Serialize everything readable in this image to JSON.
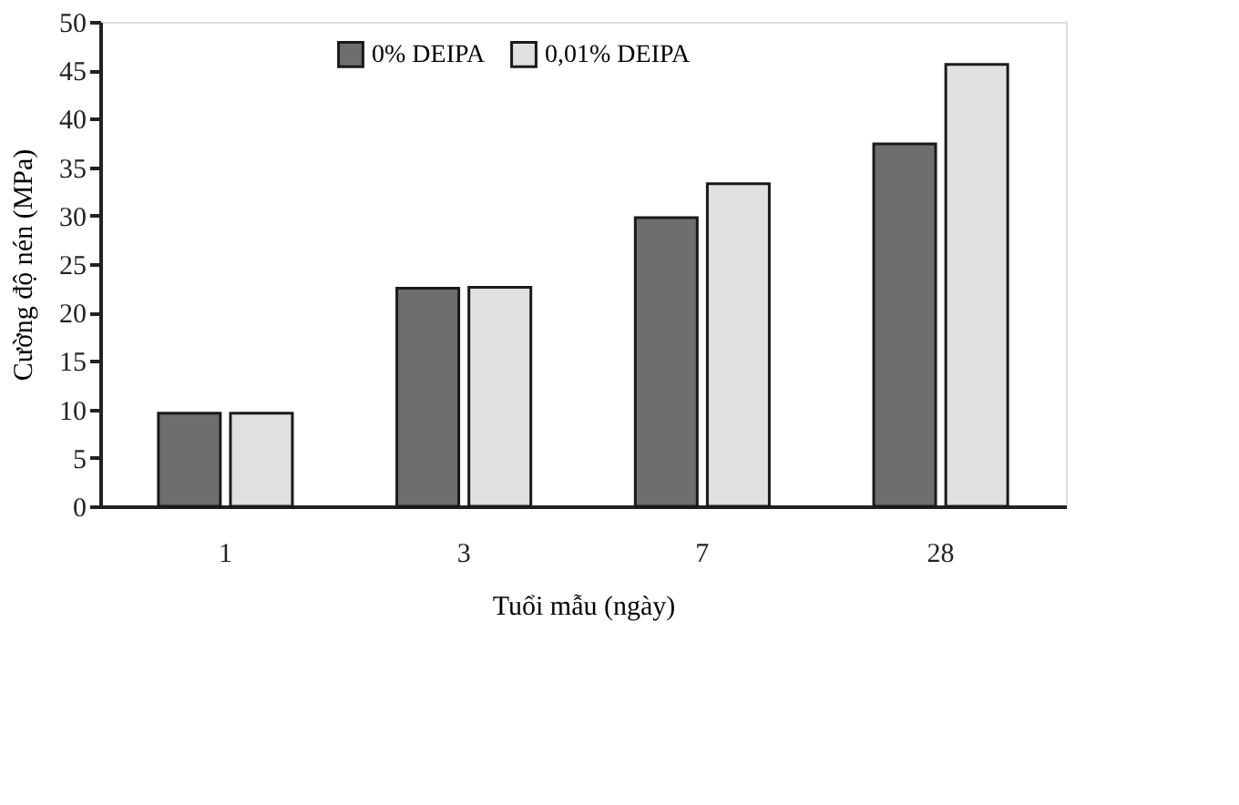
{
  "chart_data": {
    "type": "bar",
    "xlabel": "Tuổi mẫu (ngày)",
    "ylabel": "Cường độ nén (MPa)",
    "categories": [
      "1",
      "3",
      "7",
      "28"
    ],
    "series": [
      {
        "name": "0% DEIPA",
        "color": "#6e6e6e",
        "values": [
          9.6,
          22.5,
          29.8,
          37.4
        ]
      },
      {
        "name": "0,01% DEIPA",
        "color": "#e0e0e0",
        "values": [
          9.6,
          22.6,
          33.3,
          45.6
        ]
      }
    ],
    "ylim": [
      0,
      50
    ],
    "yticks": [
      0,
      5,
      10,
      15,
      20,
      25,
      30,
      35,
      40,
      45,
      50
    ],
    "grid": false,
    "legend": "top left"
  }
}
